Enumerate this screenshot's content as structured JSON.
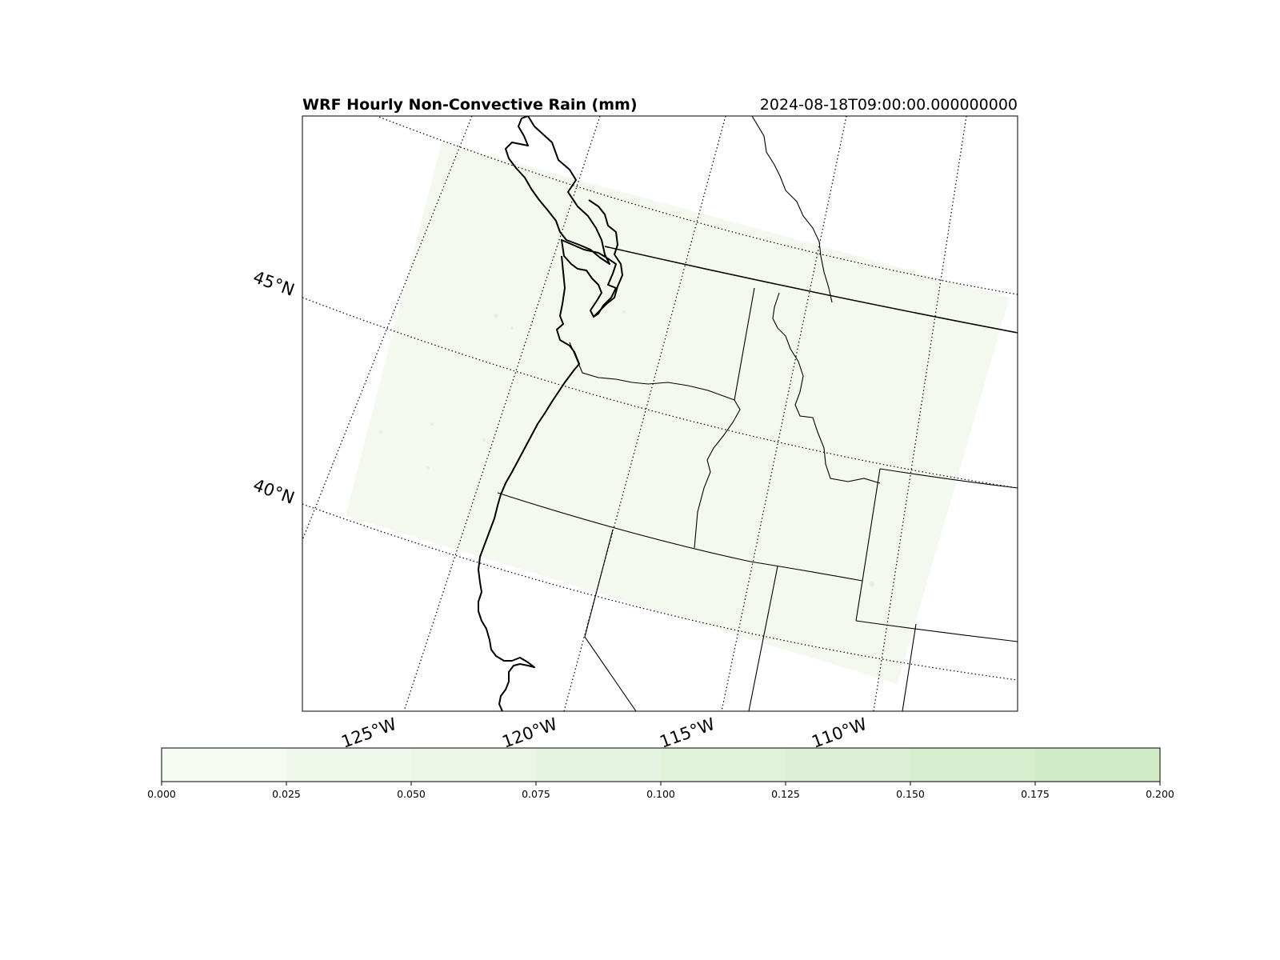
{
  "title": "WRF Hourly Non-Convective Rain (mm)",
  "timestamp": "2024-08-18T09:00:00.000000000",
  "map": {
    "projection": "Lambert Conformal",
    "features": [
      "coastline",
      "country borders",
      "state borders"
    ],
    "gridlines": "dotted",
    "latitude_labels": [
      "45°N",
      "40°N"
    ],
    "longitude_labels": [
      "125°W",
      "120°W",
      "115°W",
      "110°W"
    ],
    "field_color": "#f2f9ee",
    "domain_fill": "#f3f9ee"
  },
  "colorbar": {
    "orientation": "horizontal",
    "colormap": "Greens",
    "min": 0.0,
    "max": 0.2,
    "ticks": [
      "0.000",
      "0.025",
      "0.050",
      "0.075",
      "0.100",
      "0.125",
      "0.150",
      "0.175",
      "0.200"
    ],
    "bin_colors": [
      "#f5fbf2",
      "#f0f8ec",
      "#ebf6e6",
      "#e5f4e0",
      "#e0f2da",
      "#dbf0d4",
      "#d5eecd",
      "#d0ecc7"
    ]
  }
}
